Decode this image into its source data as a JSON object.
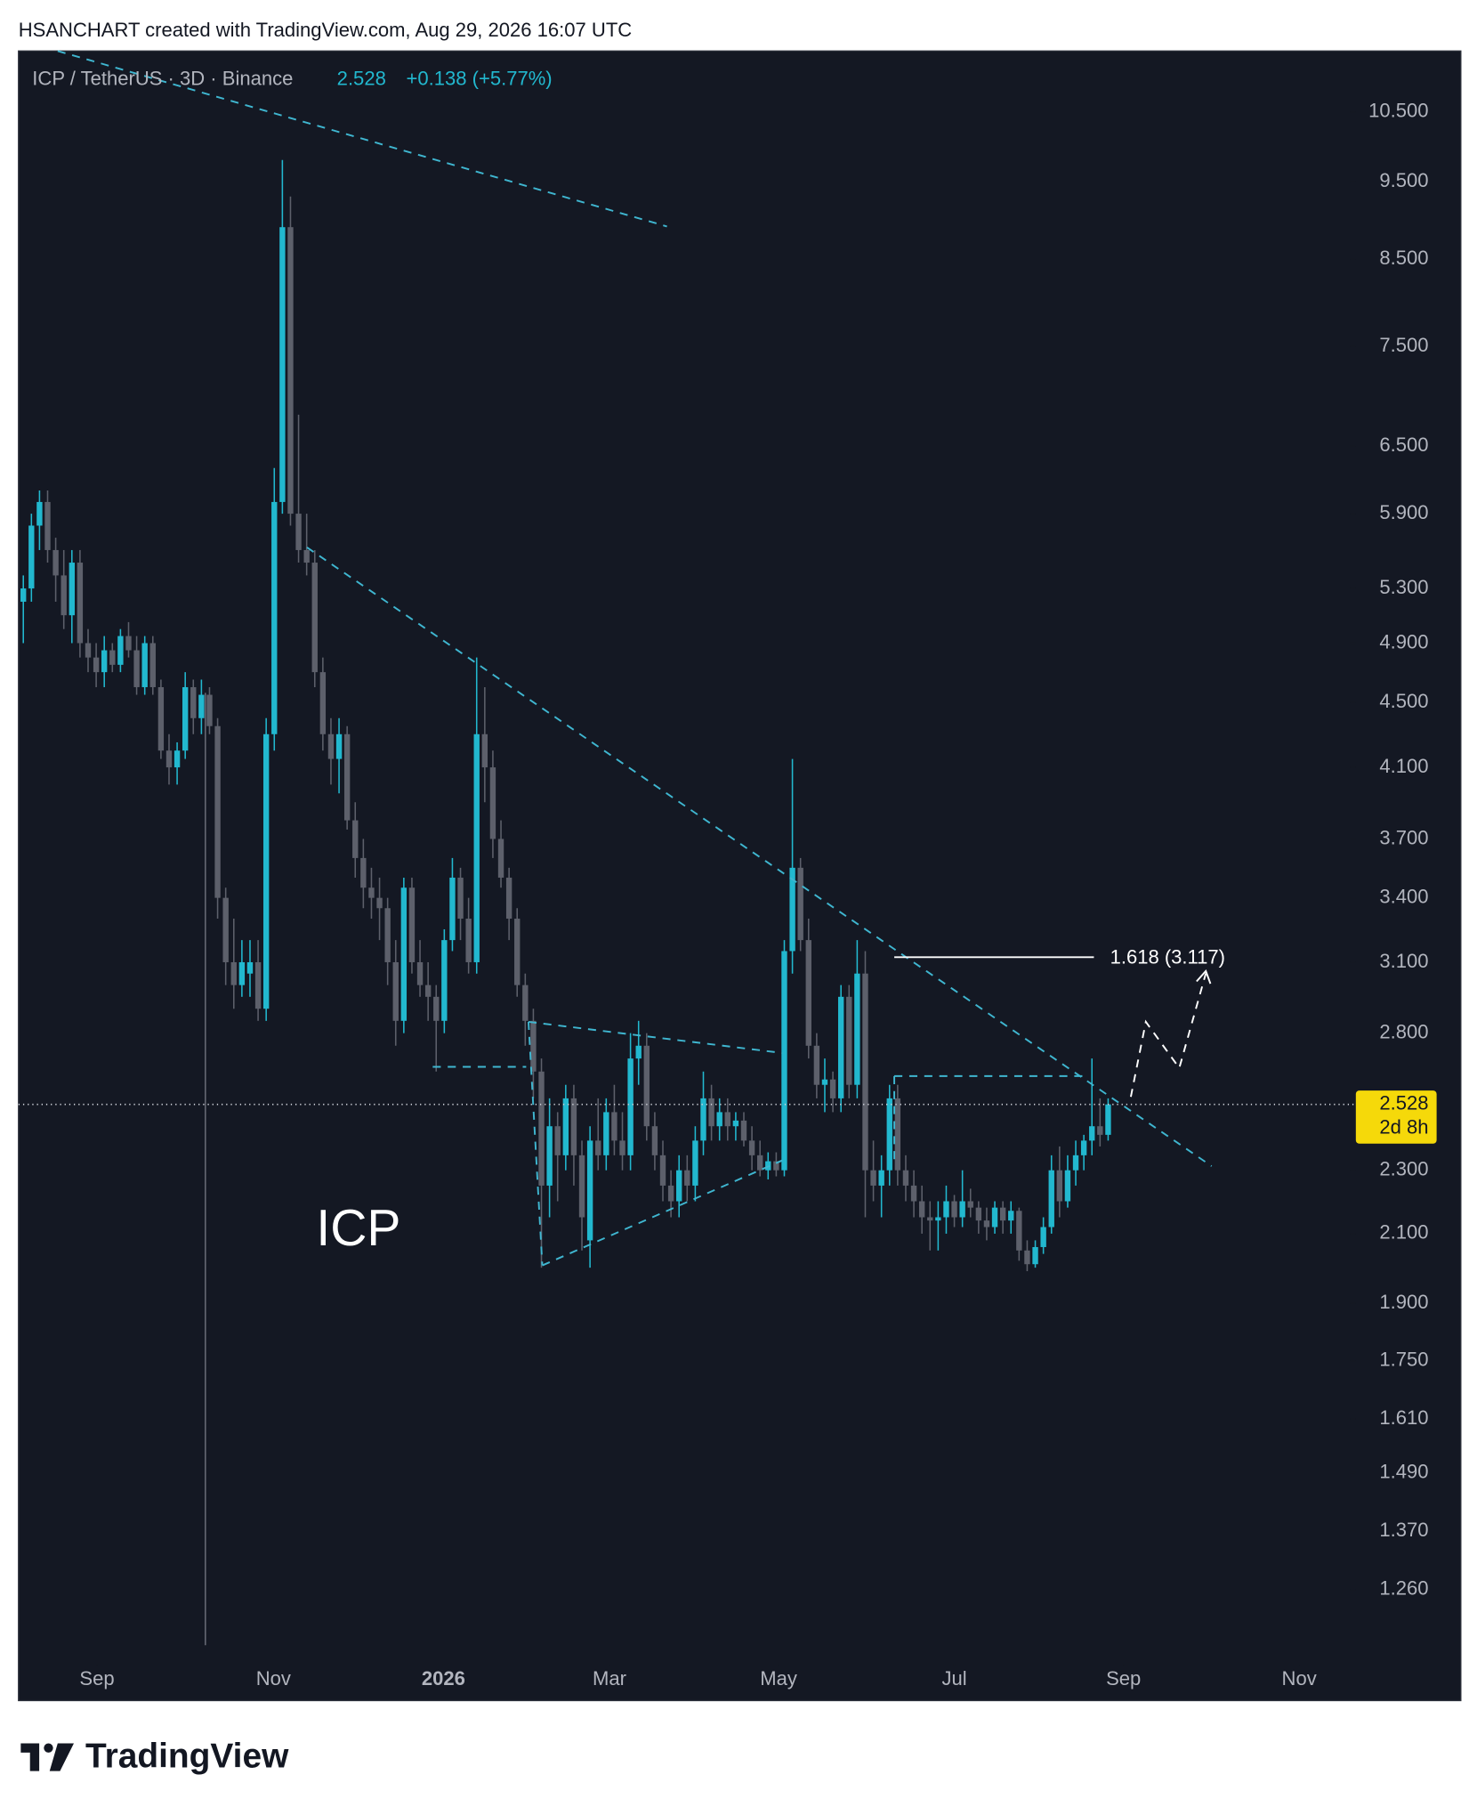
{
  "header": {
    "attribution": "HSANCHART created with TradingView.com, Aug 29, 2026 16:07 UTC"
  },
  "chart_data": {
    "type": "candlestick",
    "symbol": "ICP / TetherUS · 3D · Binance",
    "last": 2.528,
    "change": "+0.138 (+5.77%)",
    "countdown": "2d 8h",
    "annotation": "ICP",
    "fib_label": "1.618 (3.117)",
    "up_color": "#22b8cf",
    "down_color": "#5d606b",
    "log_scale": true,
    "candles": [
      [
        5.2,
        5.4,
        4.9,
        5.3
      ],
      [
        5.3,
        5.9,
        5.2,
        5.8
      ],
      [
        5.8,
        6.1,
        5.6,
        6.0
      ],
      [
        6.0,
        6.1,
        5.5,
        5.6
      ],
      [
        5.6,
        5.7,
        5.2,
        5.4
      ],
      [
        5.4,
        5.6,
        5.0,
        5.1
      ],
      [
        5.1,
        5.6,
        4.9,
        5.5
      ],
      [
        5.5,
        5.6,
        4.8,
        4.9
      ],
      [
        4.9,
        5.0,
        4.7,
        4.8
      ],
      [
        4.8,
        4.9,
        4.6,
        4.7
      ],
      [
        4.7,
        4.95,
        4.6,
        4.85
      ],
      [
        4.85,
        4.9,
        4.7,
        4.75
      ],
      [
        4.75,
        5.0,
        4.7,
        4.95
      ],
      [
        4.95,
        5.05,
        4.8,
        4.85
      ],
      [
        4.85,
        4.95,
        4.55,
        4.6
      ],
      [
        4.6,
        4.95,
        4.55,
        4.9
      ],
      [
        4.9,
        4.95,
        4.55,
        4.6
      ],
      [
        4.6,
        4.65,
        4.15,
        4.2
      ],
      [
        4.2,
        4.3,
        4.0,
        4.1
      ],
      [
        4.1,
        4.25,
        4.0,
        4.2
      ],
      [
        4.2,
        4.7,
        4.15,
        4.6
      ],
      [
        4.6,
        4.65,
        4.3,
        4.4
      ],
      [
        4.4,
        4.65,
        4.3,
        4.55
      ],
      [
        4.55,
        4.6,
        4.3,
        4.35
      ],
      [
        4.35,
        4.4,
        3.3,
        3.4
      ],
      [
        3.4,
        3.45,
        3.0,
        3.1
      ],
      [
        3.1,
        3.3,
        2.9,
        3.0
      ],
      [
        3.0,
        3.2,
        2.95,
        3.1
      ],
      [
        3.05,
        3.2,
        2.95,
        3.1
      ],
      [
        3.1,
        3.2,
        2.85,
        2.9
      ],
      [
        2.9,
        4.4,
        2.85,
        4.3
      ],
      [
        4.3,
        6.3,
        4.2,
        6.0
      ],
      [
        6.0,
        9.8,
        5.9,
        8.9
      ],
      [
        8.9,
        9.3,
        5.8,
        5.9
      ],
      [
        5.9,
        6.8,
        5.5,
        5.6
      ],
      [
        5.6,
        5.9,
        5.4,
        5.5
      ],
      [
        5.5,
        5.6,
        4.6,
        4.7
      ],
      [
        4.7,
        4.8,
        4.2,
        4.3
      ],
      [
        4.3,
        4.4,
        4.0,
        4.15
      ],
      [
        4.15,
        4.4,
        3.95,
        4.3
      ],
      [
        4.3,
        4.35,
        3.75,
        3.8
      ],
      [
        3.8,
        3.9,
        3.5,
        3.6
      ],
      [
        3.6,
        3.7,
        3.35,
        3.45
      ],
      [
        3.45,
        3.55,
        3.3,
        3.4
      ],
      [
        3.4,
        3.5,
        3.2,
        3.35
      ],
      [
        3.35,
        3.4,
        3.0,
        3.1
      ],
      [
        3.1,
        3.2,
        2.75,
        2.85
      ],
      [
        2.85,
        3.5,
        2.8,
        3.45
      ],
      [
        3.45,
        3.5,
        3.05,
        3.1
      ],
      [
        3.1,
        3.2,
        2.95,
        3.0
      ],
      [
        3.0,
        3.1,
        2.85,
        2.95
      ],
      [
        2.95,
        3.0,
        2.65,
        2.85
      ],
      [
        2.85,
        3.25,
        2.8,
        3.2
      ],
      [
        3.2,
        3.6,
        3.15,
        3.5
      ],
      [
        3.5,
        3.55,
        3.2,
        3.3
      ],
      [
        3.3,
        3.4,
        3.05,
        3.1
      ],
      [
        3.1,
        4.8,
        3.05,
        4.3
      ],
      [
        4.3,
        4.6,
        3.9,
        4.1
      ],
      [
        4.1,
        4.2,
        3.6,
        3.7
      ],
      [
        3.7,
        3.8,
        3.45,
        3.5
      ],
      [
        3.5,
        3.55,
        3.2,
        3.3
      ],
      [
        3.3,
        3.35,
        2.95,
        3.0
      ],
      [
        3.0,
        3.05,
        2.75,
        2.85
      ],
      [
        2.85,
        2.9,
        2.55,
        2.65
      ],
      [
        2.65,
        2.7,
        2.0,
        2.25
      ],
      [
        2.25,
        2.55,
        2.15,
        2.45
      ],
      [
        2.45,
        2.5,
        2.2,
        2.35
      ],
      [
        2.35,
        2.6,
        2.3,
        2.55
      ],
      [
        2.55,
        2.6,
        2.25,
        2.35
      ],
      [
        2.35,
        2.4,
        2.05,
        2.15
      ],
      [
        2.08,
        2.45,
        2.0,
        2.4
      ],
      [
        2.4,
        2.55,
        2.3,
        2.35
      ],
      [
        2.35,
        2.55,
        2.3,
        2.5
      ],
      [
        2.5,
        2.6,
        2.35,
        2.4
      ],
      [
        2.4,
        2.5,
        2.3,
        2.35
      ],
      [
        2.35,
        2.8,
        2.3,
        2.7
      ],
      [
        2.7,
        2.85,
        2.6,
        2.75
      ],
      [
        2.75,
        2.8,
        2.4,
        2.45
      ],
      [
        2.45,
        2.5,
        2.3,
        2.35
      ],
      [
        2.35,
        2.4,
        2.2,
        2.25
      ],
      [
        2.25,
        2.3,
        2.15,
        2.2
      ],
      [
        2.2,
        2.35,
        2.15,
        2.3
      ],
      [
        2.3,
        2.35,
        2.2,
        2.25
      ],
      [
        2.25,
        2.45,
        2.2,
        2.4
      ],
      [
        2.4,
        2.65,
        2.35,
        2.55
      ],
      [
        2.55,
        2.6,
        2.4,
        2.45
      ],
      [
        2.45,
        2.55,
        2.4,
        2.5
      ],
      [
        2.5,
        2.55,
        2.4,
        2.45
      ],
      [
        2.45,
        2.5,
        2.4,
        2.47
      ],
      [
        2.47,
        2.5,
        2.38,
        2.4
      ],
      [
        2.4,
        2.45,
        2.3,
        2.35
      ],
      [
        2.35,
        2.4,
        2.28,
        2.3
      ],
      [
        2.3,
        2.36,
        2.27,
        2.33
      ],
      [
        2.33,
        2.36,
        2.28,
        2.3
      ],
      [
        2.3,
        3.2,
        2.28,
        3.15
      ],
      [
        3.15,
        4.15,
        3.05,
        3.55
      ],
      [
        3.55,
        3.6,
        3.15,
        3.2
      ],
      [
        3.2,
        3.3,
        2.7,
        2.75
      ],
      [
        2.75,
        2.8,
        2.55,
        2.6
      ],
      [
        2.6,
        2.7,
        2.5,
        2.62
      ],
      [
        2.62,
        2.65,
        2.5,
        2.55
      ],
      [
        2.55,
        3.0,
        2.5,
        2.95
      ],
      [
        2.95,
        3.0,
        2.55,
        2.6
      ],
      [
        2.6,
        3.2,
        2.55,
        3.05
      ],
      [
        3.05,
        3.15,
        2.15,
        2.3
      ],
      [
        2.3,
        2.4,
        2.2,
        2.25
      ],
      [
        2.25,
        2.35,
        2.15,
        2.3
      ],
      [
        2.3,
        2.6,
        2.25,
        2.55
      ],
      [
        2.55,
        2.6,
        2.25,
        2.3
      ],
      [
        2.3,
        2.35,
        2.2,
        2.25
      ],
      [
        2.25,
        2.3,
        2.15,
        2.2
      ],
      [
        2.2,
        2.25,
        2.1,
        2.15
      ],
      [
        2.15,
        2.2,
        2.05,
        2.14
      ],
      [
        2.14,
        2.2,
        2.05,
        2.15
      ],
      [
        2.15,
        2.25,
        2.1,
        2.2
      ],
      [
        2.2,
        2.22,
        2.12,
        2.15
      ],
      [
        2.15,
        2.3,
        2.12,
        2.2
      ],
      [
        2.2,
        2.24,
        2.15,
        2.18
      ],
      [
        2.18,
        2.2,
        2.1,
        2.14
      ],
      [
        2.14,
        2.18,
        2.08,
        2.12
      ],
      [
        2.12,
        2.2,
        2.1,
        2.18
      ],
      [
        2.18,
        2.2,
        2.1,
        2.14
      ],
      [
        2.14,
        2.2,
        2.1,
        2.17
      ],
      [
        2.17,
        2.18,
        2.02,
        2.05
      ],
      [
        2.05,
        2.08,
        1.99,
        2.01
      ],
      [
        2.01,
        2.08,
        2.0,
        2.06
      ],
      [
        2.06,
        2.15,
        2.04,
        2.12
      ],
      [
        2.12,
        2.35,
        2.1,
        2.3
      ],
      [
        2.3,
        2.38,
        2.15,
        2.2
      ],
      [
        2.2,
        2.35,
        2.18,
        2.3
      ],
      [
        2.3,
        2.4,
        2.25,
        2.35
      ],
      [
        2.35,
        2.42,
        2.3,
        2.4
      ],
      [
        2.4,
        2.7,
        2.35,
        2.45
      ],
      [
        2.45,
        2.55,
        2.38,
        2.42
      ],
      [
        2.42,
        2.55,
        2.4,
        2.528
      ]
    ],
    "xlim": [
      -0.6,
      163.6
    ],
    "xticks": [
      {
        "value": 9.1,
        "label": "Sep"
      },
      {
        "value": 30.9,
        "label": "Nov"
      },
      {
        "value": 51.9,
        "label": "2026"
      },
      {
        "value": 72.4,
        "label": "Mar"
      },
      {
        "value": 93.3,
        "label": "May"
      },
      {
        "value": 115,
        "label": "Jul"
      },
      {
        "value": 135.9,
        "label": "Sep"
      },
      {
        "value": 157.6,
        "label": "Nov"
      }
    ],
    "ylim": [
      1.135,
      11.46
    ],
    "yticks": [
      {
        "value": 10.5,
        "label": "10.500"
      },
      {
        "value": 9.5,
        "label": "9.500"
      },
      {
        "value": 8.5,
        "label": "8.500"
      },
      {
        "value": 7.5,
        "label": "7.500"
      },
      {
        "value": 6.5,
        "label": "6.500"
      },
      {
        "value": 5.9,
        "label": "5.900"
      },
      {
        "value": 5.3,
        "label": "5.300"
      },
      {
        "value": 4.9,
        "label": "4.900"
      },
      {
        "value": 4.5,
        "label": "4.500"
      },
      {
        "value": 4.1,
        "label": "4.100"
      },
      {
        "value": 3.7,
        "label": "3.700"
      },
      {
        "value": 3.4,
        "label": "3.400"
      },
      {
        "value": 3.1,
        "label": "3.100"
      },
      {
        "value": 2.8,
        "label": "2.800"
      },
      {
        "value": 2.3,
        "label": "2.300"
      },
      {
        "value": 2.1,
        "label": "2.100"
      },
      {
        "value": 1.9,
        "label": "1.900"
      },
      {
        "value": 1.75,
        "label": "1.750"
      },
      {
        "value": 1.61,
        "label": "1.610"
      },
      {
        "value": 1.49,
        "label": "1.490"
      },
      {
        "value": 1.37,
        "label": "1.370"
      },
      {
        "value": 1.26,
        "label": "1.260"
      }
    ]
  },
  "footer": {
    "brand": "TradingView"
  }
}
